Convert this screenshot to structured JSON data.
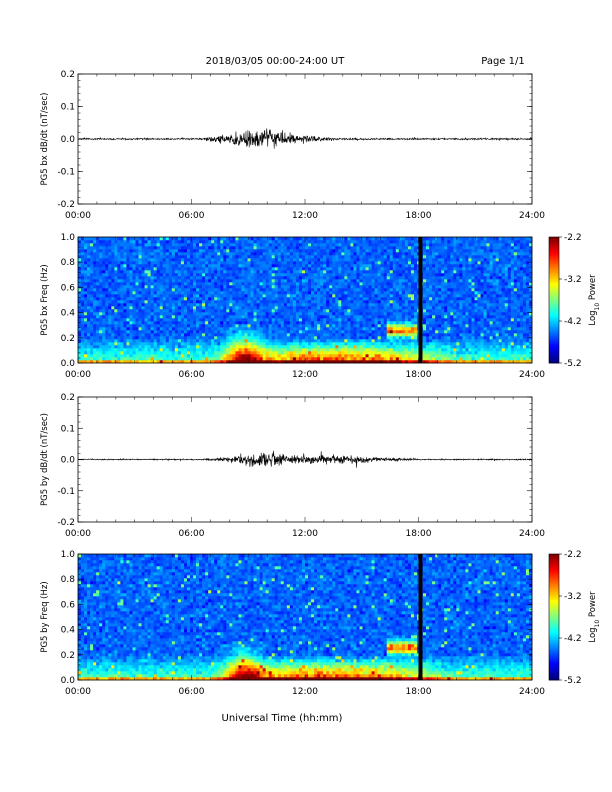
{
  "header": {
    "title": "2018/03/05  00:00-24:00 UT",
    "page": "Page 1/1"
  },
  "xlabel": "Universal Time (hh:mm)",
  "colors": {
    "trace": "#000000",
    "background": "#ffffff",
    "data_gap": "#000000"
  },
  "chart_data": [
    {
      "type": "line",
      "ylabel": "PG5 bx dB/dt (nT/sec)",
      "x_ticks": [
        "00:00",
        "06:00",
        "12:00",
        "18:00",
        "24:00"
      ],
      "xlim_hours": [
        0,
        24
      ],
      "ylim": [
        -0.2,
        0.2
      ],
      "y_ticks": [
        "0.2",
        "0.1",
        "0.0",
        "-0.1",
        "-0.2"
      ],
      "envelope": {
        "quiet_amplitude": 0.004,
        "active_interval_hours": [
          6.5,
          13.5
        ],
        "peak_hour": 9.3,
        "peak_amplitude": 0.045
      }
    },
    {
      "type": "heatmap",
      "ylabel": "PG5 bx Freq (Hz)",
      "x_ticks": [
        "00:00",
        "06:00",
        "12:00",
        "18:00",
        "24:00"
      ],
      "xlim_hours": [
        0,
        24
      ],
      "ylim": [
        0,
        1.0
      ],
      "y_ticks": [
        "1.0",
        "0.8",
        "0.6",
        "0.4",
        "0.2",
        "0.0"
      ],
      "colorbar": {
        "label": "Log10 Power",
        "label_base": "Log",
        "label_sub": "10",
        "label_rest": " Power",
        "range": [
          -5.2,
          -2.2
        ],
        "ticks": [
          "-2.2",
          "-3.2",
          "-4.2",
          "-5.2"
        ]
      },
      "data_gap_hours": [
        18.0,
        18.2
      ]
    },
    {
      "type": "line",
      "ylabel": "PG5 by dB/dt (nT/sec)",
      "x_ticks": [
        "00:00",
        "06:00",
        "12:00",
        "18:00",
        "24:00"
      ],
      "xlim_hours": [
        0,
        24
      ],
      "ylim": [
        -0.2,
        0.2
      ],
      "y_ticks": [
        "0.2",
        "0.1",
        "0.0",
        "-0.1",
        "-0.2"
      ],
      "envelope": {
        "quiet_amplitude": 0.003,
        "active_interval_hours": [
          6.5,
          18.0
        ],
        "peak_hour": 9.5,
        "peak_amplitude": 0.035
      }
    },
    {
      "type": "heatmap",
      "ylabel": "PG5 by Freq (Hz)",
      "x_ticks": [
        "00:00",
        "06:00",
        "12:00",
        "18:00",
        "24:00"
      ],
      "xlim_hours": [
        0,
        24
      ],
      "ylim": [
        0,
        1.0
      ],
      "y_ticks": [
        "1.0",
        "0.8",
        "0.6",
        "0.4",
        "0.2",
        "0.0"
      ],
      "colorbar": {
        "label": "Log10 Power",
        "label_base": "Log",
        "label_sub": "10",
        "label_rest": " Power",
        "range": [
          -5.2,
          -2.2
        ],
        "ticks": [
          "-2.2",
          "-3.2",
          "-4.2",
          "-5.2"
        ]
      },
      "data_gap_hours": [
        18.0,
        18.2
      ]
    }
  ]
}
